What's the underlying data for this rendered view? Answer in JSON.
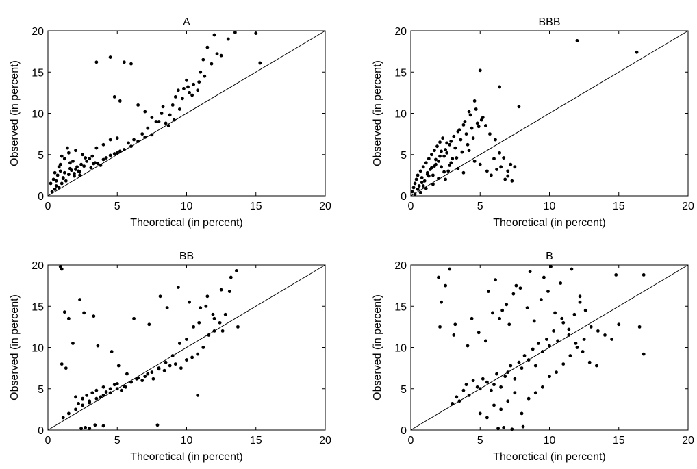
{
  "colors": {
    "marker": "#000000",
    "axes": "#000000",
    "background": "#ffffff"
  },
  "chart_data": [
    {
      "type": "scatter",
      "title": "A",
      "xlabel": "Theoretical (in percent)",
      "ylabel": "Observed (in percent)",
      "xlim": [
        0,
        20
      ],
      "ylim": [
        0,
        20
      ],
      "xticks": [
        0,
        5,
        10,
        15,
        20
      ],
      "yticks": [
        0,
        5,
        10,
        15,
        20
      ],
      "reference_line": [
        [
          0,
          0
        ],
        [
          20,
          20
        ]
      ],
      "grid": false,
      "series": [
        {
          "x": [
            0.3,
            0.5,
            0.6,
            0.8,
            1.0,
            0.4,
            0.7,
            0.9,
            1.1,
            1.3,
            1.5,
            1.7,
            1.9,
            2.1,
            2.3,
            0.2,
            0.5,
            0.9,
            1.2,
            1.6,
            2.0,
            2.4,
            2.8,
            3.2,
            3.6,
            4.0,
            4.5,
            5.0,
            5.5,
            6.0,
            6.5,
            7.0,
            7.5,
            1.0,
            1.5,
            2.0,
            2.5,
            3.0,
            3.5,
            4.0,
            4.5,
            5.0,
            0.8,
            1.2,
            1.6,
            2.2,
            2.6,
            3.1,
            3.4,
            3.8,
            4.2,
            4.8,
            5.2,
            5.8,
            6.2,
            6.8,
            7.2,
            7.8,
            8.2,
            8.5,
            8.8,
            9.0,
            9.2,
            9.5,
            9.8,
            10.0,
            10.2,
            10.5,
            10.8,
            11.0,
            11.2,
            11.5,
            12.0,
            12.5,
            13.0,
            13.5,
            15.0,
            15.3,
            3.5,
            4.5,
            5.5,
            6.0,
            4.8,
            5.2,
            6.5,
            7.0,
            7.5,
            8.0,
            8.3,
            8.7,
            9.1,
            9.4,
            9.7,
            10.1,
            10.4,
            10.9,
            11.3,
            11.8,
            12.2,
            1.4,
            1.8,
            2.7,
            3.3,
            0.6,
            1.1,
            1.9,
            2.3
          ],
          "y": [
            0.5,
            0.8,
            1.2,
            1.0,
            1.5,
            2.0,
            2.5,
            3.0,
            2.2,
            1.8,
            2.6,
            3.1,
            2.4,
            3.5,
            2.9,
            1.5,
            2.8,
            3.8,
            4.5,
            4.0,
            3.2,
            3.8,
            4.2,
            4.8,
            3.9,
            4.4,
            4.9,
            5.2,
            5.6,
            6.0,
            6.6,
            7.1,
            7.4,
            4.8,
            5.2,
            5.5,
            5.0,
            4.5,
            5.8,
            6.2,
            6.8,
            7.0,
            3.5,
            2.8,
            3.3,
            3.0,
            3.6,
            3.4,
            4.0,
            3.7,
            4.6,
            5.1,
            5.4,
            6.4,
            6.8,
            7.5,
            8.2,
            9.0,
            10.0,
            8.8,
            9.8,
            11.0,
            12.0,
            10.5,
            13.0,
            14.0,
            12.5,
            13.5,
            12.8,
            15.0,
            16.5,
            18.0,
            19.5,
            17.0,
            19.0,
            19.8,
            19.7,
            16.1,
            16.2,
            16.8,
            16.2,
            16.0,
            12.0,
            11.5,
            11.0,
            10.2,
            9.5,
            9.0,
            10.8,
            8.5,
            9.2,
            12.8,
            11.8,
            13.2,
            12.2,
            13.8,
            14.5,
            16.0,
            17.2,
            5.8,
            4.2,
            4.6,
            3.9,
            1.8,
            2.1,
            2.7,
            2.5
          ],
          "marker": "dot"
        }
      ]
    },
    {
      "type": "scatter",
      "title": "BBB",
      "xlabel": "Theoretical (in percent)",
      "ylabel": "Observed (in percent)",
      "xlim": [
        0,
        20
      ],
      "ylim": [
        0,
        20
      ],
      "xticks": [
        0,
        5,
        10,
        15,
        20
      ],
      "yticks": [
        0,
        5,
        10,
        15,
        20
      ],
      "reference_line": [
        [
          0,
          0
        ],
        [
          20,
          20
        ]
      ],
      "grid": false,
      "series": [
        {
          "x": [
            0.1,
            0.2,
            0.3,
            0.4,
            0.5,
            0.6,
            0.7,
            0.8,
            0.9,
            1.0,
            1.1,
            1.2,
            1.3,
            1.4,
            1.5,
            1.6,
            1.7,
            1.8,
            1.9,
            2.0,
            2.1,
            2.2,
            2.3,
            2.4,
            2.5,
            2.6,
            2.7,
            2.8,
            2.9,
            3.0,
            3.2,
            3.4,
            3.6,
            3.8,
            4.0,
            4.2,
            4.4,
            4.6,
            4.8,
            5.0,
            5.2,
            5.5,
            5.8,
            6.0,
            6.2,
            6.5,
            6.8,
            7.0,
            7.2,
            7.5,
            0.5,
            0.8,
            1.2,
            1.5,
            1.8,
            2.2,
            2.6,
            3.1,
            3.5,
            3.9,
            4.3,
            4.7,
            5.1,
            5.4,
            5.7,
            6.1,
            6.4,
            6.7,
            7.0,
            7.3,
            0.3,
            0.7,
            1.1,
            1.6,
            2.0,
            2.4,
            2.8,
            3.3,
            3.7,
            4.1,
            4.5,
            4.9,
            12.0,
            16.3,
            7.8,
            6.4,
            5.0,
            4.6,
            4.2,
            3.8,
            3.4,
            2.9,
            2.5,
            2.1,
            1.7,
            1.3,
            0.9
          ],
          "y": [
            0.5,
            1.0,
            1.5,
            2.0,
            2.5,
            1.2,
            3.0,
            2.2,
            3.5,
            1.8,
            4.0,
            2.8,
            4.5,
            3.2,
            5.0,
            2.5,
            5.5,
            3.8,
            6.0,
            4.2,
            6.5,
            3.5,
            7.0,
            4.8,
            2.0,
            5.2,
            3.0,
            6.2,
            4.0,
            4.5,
            5.8,
            3.3,
            6.8,
            2.8,
            7.5,
            5.5,
            8.2,
            4.2,
            8.8,
            3.8,
            9.5,
            3.0,
            2.5,
            4.5,
            3.2,
            3.5,
            2.0,
            3.0,
            3.8,
            3.5,
            0.8,
            1.6,
            2.6,
            3.4,
            4.4,
            5.4,
            6.4,
            7.2,
            8.0,
            9.0,
            9.8,
            10.5,
            9.2,
            8.5,
            7.5,
            6.8,
            5.2,
            4.6,
            2.4,
            1.8,
            0.2,
            0.4,
            0.9,
            1.4,
            2.1,
            2.9,
            3.7,
            4.6,
            5.3,
            6.2,
            7.0,
            8.4,
            18.8,
            17.4,
            10.8,
            13.2,
            15.2,
            11.5,
            10.2,
            8.6,
            7.8,
            6.6,
            5.6,
            4.8,
            3.6,
            2.4,
            1.2
          ],
          "marker": "dot"
        }
      ]
    },
    {
      "type": "scatter",
      "title": "BB",
      "xlabel": "Theoretical (in percent)",
      "ylabel": "Observed (in percent)",
      "xlim": [
        0,
        20
      ],
      "ylim": [
        0,
        20
      ],
      "xticks": [
        0,
        5,
        10,
        15,
        20
      ],
      "yticks": [
        0,
        5,
        10,
        15,
        20
      ],
      "reference_line": [
        [
          0,
          0
        ],
        [
          20,
          20
        ]
      ],
      "grid": false,
      "series": [
        {
          "x": [
            0.9,
            1.0,
            1.2,
            1.5,
            1.8,
            2.0,
            2.2,
            2.5,
            2.8,
            3.0,
            3.2,
            3.5,
            3.8,
            4.0,
            4.2,
            4.5,
            4.8,
            5.0,
            5.3,
            5.6,
            6.0,
            6.4,
            6.8,
            7.2,
            7.6,
            8.0,
            8.4,
            8.8,
            9.2,
            9.6,
            10.0,
            10.4,
            10.8,
            11.2,
            11.6,
            12.0,
            12.4,
            12.8,
            13.2,
            13.6,
            1.5,
            2.0,
            2.5,
            3.0,
            3.5,
            4.0,
            4.5,
            5.0,
            5.5,
            6.0,
            6.5,
            7.0,
            7.5,
            8.0,
            8.5,
            9.0,
            9.5,
            10.0,
            10.5,
            11.0,
            11.5,
            12.0,
            12.5,
            1.0,
            1.3,
            2.3,
            2.6,
            3.3,
            3.6,
            4.6,
            5.1,
            5.7,
            6.2,
            7.3,
            8.1,
            8.6,
            9.4,
            10.2,
            10.9,
            11.4,
            11.9,
            12.6,
            13.1,
            13.7,
            1.1,
            2.4,
            2.7,
            3.0,
            3.4,
            4.0,
            7.9,
            10.8
          ],
          "y": [
            19.8,
            19.5,
            14.3,
            13.5,
            10.5,
            4.0,
            3.2,
            3.8,
            4.2,
            3.5,
            4.5,
            4.8,
            4.0,
            5.2,
            4.6,
            5.0,
            5.5,
            5.0,
            4.8,
            5.2,
            5.8,
            6.2,
            6.0,
            6.8,
            6.2,
            7.5,
            7.2,
            7.8,
            8.0,
            7.5,
            8.5,
            8.8,
            9.2,
            10.0,
            11.5,
            12.0,
            13.0,
            14.0,
            18.5,
            19.3,
            2.0,
            2.5,
            3.0,
            3.3,
            3.8,
            4.2,
            4.5,
            5.6,
            5.3,
            5.8,
            6.3,
            6.5,
            7.0,
            7.4,
            8.2,
            9.0,
            10.5,
            11.0,
            12.5,
            14.8,
            16.2,
            13.5,
            17.0,
            8.0,
            7.5,
            15.8,
            14.2,
            13.8,
            10.2,
            9.5,
            7.8,
            6.8,
            13.5,
            12.8,
            16.2,
            14.8,
            17.3,
            15.5,
            13.0,
            15.0,
            14.0,
            12.0,
            16.8,
            12.5,
            1.5,
            0.2,
            0.3,
            0.2,
            0.6,
            0.5,
            0.6,
            4.2
          ],
          "marker": "dot"
        }
      ]
    },
    {
      "type": "scatter",
      "title": "B",
      "xlabel": "Theoretical (in percent)",
      "ylabel": "Observed (in percent)",
      "xlim": [
        0,
        20
      ],
      "ylim": [
        0,
        20
      ],
      "xticks": [
        0,
        5,
        10,
        15,
        20
      ],
      "yticks": [
        0,
        5,
        10,
        15,
        20
      ],
      "reference_line": [
        [
          0,
          0
        ],
        [
          20,
          20
        ]
      ],
      "grid": false,
      "series": [
        {
          "x": [
            2.0,
            2.2,
            2.5,
            2.8,
            3.0,
            3.3,
            3.5,
            3.8,
            4.0,
            4.2,
            4.5,
            4.8,
            5.0,
            5.2,
            5.5,
            5.8,
            6.0,
            6.2,
            6.5,
            6.8,
            7.0,
            7.2,
            7.5,
            7.8,
            8.0,
            8.2,
            8.5,
            8.8,
            9.0,
            9.2,
            9.5,
            9.8,
            10.0,
            10.3,
            10.6,
            11.0,
            11.4,
            11.8,
            12.2,
            12.6,
            13.0,
            13.5,
            14.0,
            14.5,
            15.0,
            16.5,
            16.8,
            5.0,
            5.5,
            6.0,
            6.5,
            7.0,
            7.5,
            8.0,
            8.5,
            9.0,
            9.5,
            10.0,
            10.5,
            11.0,
            11.5,
            12.0,
            12.5,
            3.2,
            4.4,
            4.9,
            5.4,
            5.9,
            6.4,
            6.9,
            7.4,
            7.9,
            8.4,
            8.9,
            9.4,
            9.9,
            10.4,
            10.9,
            11.4,
            11.9,
            12.4,
            12.9,
            13.4,
            2.1,
            3.1,
            4.1,
            5.6,
            6.1,
            6.6,
            7.1,
            7.6,
            8.6,
            9.6,
            10.1,
            10.8,
            11.6,
            12.2,
            14.8,
            16.8,
            6.3,
            6.7,
            7.3,
            8.1
          ],
          "y": [
            18.5,
            15.5,
            17.5,
            19.5,
            3.2,
            4.0,
            3.5,
            4.8,
            5.5,
            4.2,
            6.0,
            5.2,
            5.0,
            6.2,
            5.8,
            4.8,
            5.5,
            6.8,
            5.2,
            6.5,
            7.0,
            7.8,
            6.2,
            8.2,
            7.5,
            9.0,
            8.5,
            9.8,
            7.8,
            10.5,
            9.5,
            11.0,
            10.2,
            12.0,
            10.8,
            13.0,
            11.5,
            14.0,
            15.5,
            14.5,
            12.5,
            12.0,
            11.5,
            11.0,
            12.8,
            12.5,
            18.8,
            2.0,
            1.5,
            3.0,
            2.5,
            3.5,
            4.5,
            2.0,
            3.8,
            4.5,
            5.2,
            6.5,
            7.0,
            8.0,
            9.0,
            10.0,
            11.0,
            12.8,
            13.5,
            11.8,
            10.8,
            14.2,
            13.5,
            15.2,
            16.5,
            17.2,
            14.8,
            13.2,
            15.8,
            16.8,
            14.2,
            13.5,
            12.2,
            10.5,
            9.5,
            8.2,
            7.8,
            12.5,
            11.5,
            10.2,
            16.8,
            18.2,
            14.5,
            12.8,
            17.5,
            19.2,
            18.5,
            19.8,
            17.8,
            19.5,
            16.2,
            18.8,
            9.2,
            0.2,
            0.3,
            0.1,
            0.4
          ],
          "marker": "dot"
        }
      ]
    }
  ]
}
